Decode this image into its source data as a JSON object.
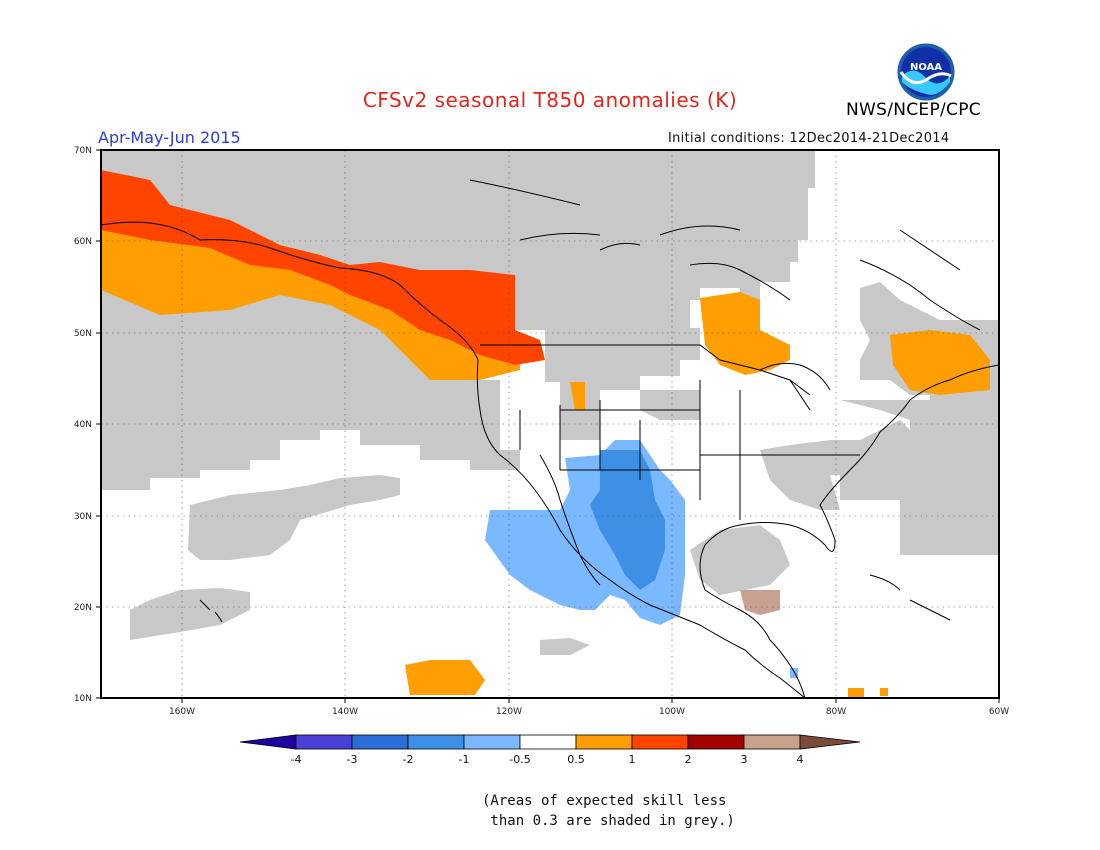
{
  "header": {
    "title": "CFSv2 seasonal T850 anomalies (K)",
    "season": "Apr-May-Jun 2015",
    "initial_conditions": "Initial conditions: 12Dec2014-21Dec2014",
    "agency": "NWS/NCEP/CPC",
    "logo_text": "NOAA"
  },
  "map": {
    "lat_labels": [
      "70N",
      "60N",
      "50N",
      "40N",
      "30N",
      "20N",
      "10N"
    ],
    "lon_labels": [
      "160W",
      "140W",
      "120W",
      "100W",
      "80W",
      "60W"
    ],
    "colors": {
      "skill_grey": "#c8c8c8",
      "warm_05_1": "#ff9e00",
      "warm_1_2": "#ff4400",
      "cool_05_1": "#7ab8ff",
      "cool_1_2": "#3e8fe6",
      "land_line": "#000000"
    }
  },
  "colorbar": {
    "ticks": [
      "-4",
      "-3",
      "-2",
      "-1",
      "-0.5",
      "0.5",
      "1",
      "2",
      "3",
      "4"
    ],
    "colors": [
      "#1f00a0",
      "#4a3fd6",
      "#2a6ed6",
      "#3e8fe6",
      "#7ab8ff",
      "#ffffff",
      "#ff9e00",
      "#ff4400",
      "#a30000",
      "#c9a08a",
      "#7a4a3a"
    ]
  },
  "footnote": {
    "line1": "(Areas of expected skill less",
    "line2": " than 0.3 are shaded in grey.)"
  }
}
